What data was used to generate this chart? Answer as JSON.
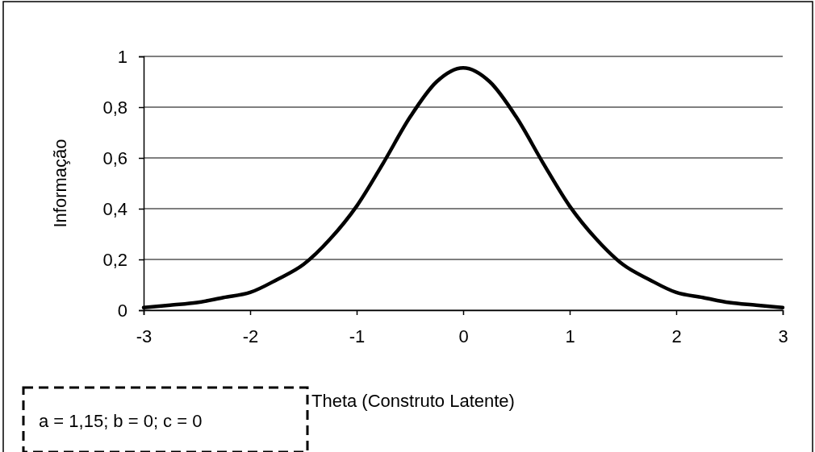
{
  "chart_data": {
    "type": "line",
    "xlabel": "Theta (Construto Latente)",
    "ylabel": "Informação",
    "x": [
      -3,
      -2.75,
      -2.5,
      -2.25,
      -2,
      -1.75,
      -1.5,
      -1.25,
      -1,
      -0.75,
      -0.5,
      -0.25,
      0,
      0.25,
      0.5,
      0.75,
      1,
      1.25,
      1.5,
      1.75,
      2,
      2.25,
      2.5,
      2.75,
      3
    ],
    "series": [
      {
        "color": "#000000",
        "values": [
          0.01,
          0.02,
          0.03,
          0.05,
          0.07,
          0.12,
          0.18,
          0.28,
          0.41,
          0.58,
          0.76,
          0.9,
          0.955,
          0.9,
          0.76,
          0.58,
          0.41,
          0.28,
          0.18,
          0.12,
          0.07,
          0.05,
          0.03,
          0.02,
          0.01
        ]
      }
    ],
    "xlim": [
      -3,
      3
    ],
    "xticks": [
      {
        "value": -3,
        "label": "-3"
      },
      {
        "value": -2,
        "label": "-2"
      },
      {
        "value": -1,
        "label": "-1"
      },
      0,
      1,
      2,
      3
    ],
    "ylim": [
      0,
      1
    ],
    "yticks": [
      0,
      {
        "value": 0.2,
        "label": "0,2"
      },
      {
        "value": 0.4,
        "label": "0,4"
      },
      {
        "value": 0.6,
        "label": "0,6"
      },
      {
        "value": 0.8,
        "label": "0,8"
      },
      1
    ],
    "grid": "y",
    "line_style": "solid",
    "marker": "none",
    "annotations": [
      "a = 1,15; b = 0; c = 0"
    ]
  }
}
